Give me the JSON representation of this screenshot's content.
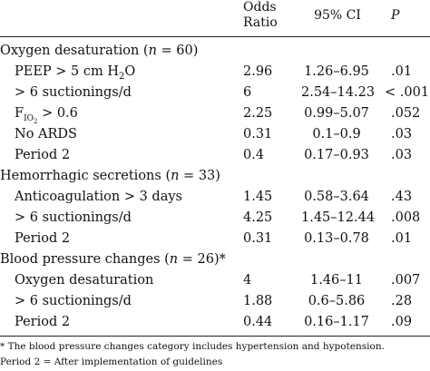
{
  "header": {
    "odds_ratio_line1": "Odds",
    "odds_ratio_line2": "Ratio",
    "ci": "95% CI",
    "p": "P"
  },
  "rows": [
    {
      "label": "Oxygen desaturation (n = 60)",
      "odds_ratio": "",
      "ci": "",
      "p": ""
    },
    {
      "label": "PEEP > 5 cm H2O",
      "odds_ratio": "2.96",
      "ci": "1.26–6.95",
      "p": ".01"
    },
    {
      "label": "> 6 suctionings/d",
      "odds_ratio": "6",
      "ci": "2.54–14.23",
      "p": "< .001"
    },
    {
      "label": "FIO2 > 0.6",
      "odds_ratio": "2.25",
      "ci": "0.99–5.07",
      "p": ".052"
    },
    {
      "label": "No ARDS",
      "odds_ratio": "0.31",
      "ci": "0.1–0.9",
      "p": ".03"
    },
    {
      "label": "Period 2",
      "odds_ratio": "0.4",
      "ci": "0.17–0.93",
      "p": ".03"
    },
    {
      "label": "Hemorrhagic secretions (n = 33)",
      "odds_ratio": "",
      "ci": "",
      "p": ""
    },
    {
      "label": "Anticoagulation > 3 days",
      "odds_ratio": "1.45",
      "ci": "0.58–3.64",
      "p": ".43"
    },
    {
      "label": "> 6 suctionings/d",
      "odds_ratio": "4.25",
      "ci": "1.45–12.44",
      "p": ".008"
    },
    {
      "label": "Period 2",
      "odds_ratio": "0.31",
      "ci": "0.13–0.78",
      "p": ".01"
    },
    {
      "label": "Blood pressure changes (n = 26)*",
      "odds_ratio": "",
      "ci": "",
      "p": ""
    },
    {
      "label": "Oxygen desaturation",
      "odds_ratio": "4",
      "ci": "1.46–11",
      "p": ".007"
    },
    {
      "label": "> 6 suctionings/d",
      "odds_ratio": "1.88",
      "ci": "0.6–5.86",
      "p": ".28"
    },
    {
      "label": "Period 2",
      "odds_ratio": "0.44",
      "ci": "0.16–1.17",
      "p": ".09"
    }
  ],
  "footnotes": {
    "note1": "* The blood pressure changes category includes hypertension and hypotension.",
    "note2": "Period 2 = After implementation of guidelines"
  }
}
